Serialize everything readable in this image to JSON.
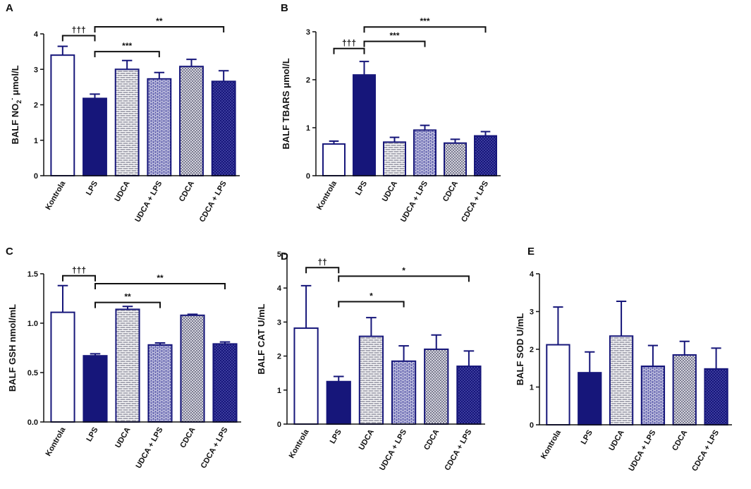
{
  "palette": {
    "axis": "#111111",
    "bar_dark": "#16167a",
    "bar_outline": "#16167a",
    "pattern_brick_bg": "#a8a8b4",
    "pattern_check_bg": "#7d7d92",
    "pattern_light_bg": "#e8e8f4"
  },
  "chart_data": [
    {
      "panel": "A",
      "type": "bar",
      "categories": [
        "Kontrola",
        "LPS",
        "UDCA",
        "UDCA + LPS",
        "CDCA",
        "CDCA + LPS"
      ],
      "values": [
        3.4,
        2.18,
        3.0,
        2.73,
        3.08,
        2.66
      ],
      "errors": [
        0.25,
        0.12,
        0.25,
        0.18,
        0.2,
        0.3
      ],
      "ylabel_main": "BALF NO",
      "ylabel_sub": "2",
      "ylabel_sup": "-",
      "ylabel_unit": " μmol/L",
      "ylim": [
        0,
        4
      ],
      "yticks": [
        0,
        1,
        2,
        3,
        4
      ],
      "ytick_labels": [
        "0",
        "1",
        "2",
        "3",
        "4"
      ],
      "brackets": [
        {
          "from": 0,
          "to": 1,
          "level": 3.95,
          "label": "†††"
        },
        {
          "from": 1,
          "to": 3,
          "level": 3.5,
          "label": "***"
        },
        {
          "from": 1,
          "to": 5,
          "level": 4.2,
          "label": "**"
        }
      ]
    },
    {
      "panel": "B",
      "type": "bar",
      "categories": [
        "Kontrola",
        "LPS",
        "UDCA",
        "UDCA + LPS",
        "CDCA",
        "CDCA + LPS"
      ],
      "values": [
        0.66,
        2.1,
        0.7,
        0.95,
        0.68,
        0.83
      ],
      "errors": [
        0.06,
        0.28,
        0.1,
        0.1,
        0.08,
        0.09
      ],
      "ylabel_main": "BALF TBARS μmol/L",
      "ylim": [
        0,
        3
      ],
      "yticks": [
        0,
        1,
        2,
        3
      ],
      "ytick_labels": [
        "0",
        "1",
        "2",
        "3"
      ],
      "brackets": [
        {
          "from": 0,
          "to": 1,
          "level": 2.65,
          "label": "†††"
        },
        {
          "from": 1,
          "to": 3,
          "level": 2.8,
          "label": "***"
        },
        {
          "from": 1,
          "to": 5,
          "level": 3.1,
          "label": "***"
        }
      ]
    },
    {
      "panel": "C",
      "type": "bar",
      "categories": [
        "Kontrola",
        "LPS",
        "UDCA",
        "UDCA + LPS",
        "CDCA",
        "CDCA + LPS"
      ],
      "values": [
        1.11,
        0.67,
        1.14,
        0.78,
        1.08,
        0.79
      ],
      "errors": [
        0.27,
        0.02,
        0.03,
        0.02,
        0.01,
        0.02
      ],
      "ylabel_main": "BALF GSH nmol/mL",
      "ylim": [
        0,
        1.5
      ],
      "yticks": [
        0,
        0.5,
        1.0,
        1.5
      ],
      "ytick_labels": [
        "0.0",
        "0.5",
        "1.0",
        "1.5"
      ],
      "brackets": [
        {
          "from": 0,
          "to": 1,
          "level": 1.48,
          "label": "†††"
        },
        {
          "from": 1,
          "to": 3,
          "level": 1.21,
          "label": "**"
        },
        {
          "from": 1,
          "to": 5,
          "level": 1.4,
          "label": "**"
        }
      ]
    },
    {
      "panel": "D",
      "type": "bar",
      "categories": [
        "Kontrola",
        "LPS",
        "UDCA",
        "UDCA + LPS",
        "CDCA",
        "CDCA + LPS"
      ],
      "values": [
        2.82,
        1.25,
        2.58,
        1.85,
        2.2,
        1.7
      ],
      "errors": [
        1.25,
        0.15,
        0.55,
        0.45,
        0.42,
        0.45
      ],
      "ylabel_main": "BALF CAT U/mL",
      "ylim": [
        0,
        5
      ],
      "yticks": [
        0,
        1,
        2,
        3,
        4,
        5
      ],
      "ytick_labels": [
        "0",
        "1",
        "2",
        "3",
        "4",
        "5"
      ],
      "brackets": [
        {
          "from": 0,
          "to": 1,
          "level": 4.6,
          "label": "††"
        },
        {
          "from": 1,
          "to": 3,
          "level": 3.6,
          "label": "*"
        },
        {
          "from": 1,
          "to": 5,
          "level": 4.35,
          "label": "*"
        }
      ]
    },
    {
      "panel": "E",
      "type": "bar",
      "categories": [
        "Kontrola",
        "LPS",
        "UDCA",
        "UDCA + LPS",
        "CDCA",
        "CDCA + LPS"
      ],
      "values": [
        2.12,
        1.38,
        2.35,
        1.55,
        1.85,
        1.48
      ],
      "errors": [
        1.0,
        0.55,
        0.92,
        0.55,
        0.36,
        0.55
      ],
      "ylabel_main": "BALF SOD U/mL",
      "ylim": [
        0,
        4
      ],
      "yticks": [
        0,
        1,
        2,
        3,
        4
      ],
      "ytick_labels": [
        "0",
        "1",
        "2",
        "3",
        "4"
      ],
      "brackets": []
    }
  ]
}
